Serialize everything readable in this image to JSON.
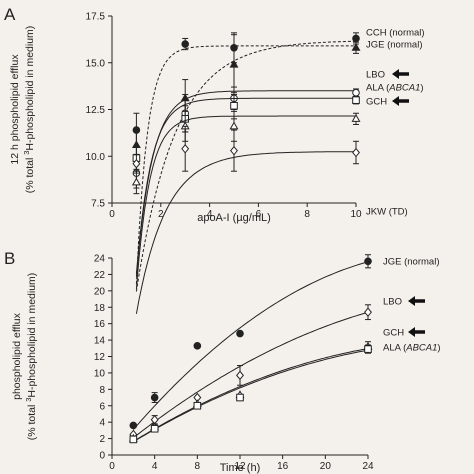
{
  "chart_data": [
    {
      "panel_label": "A",
      "type": "line",
      "xlabel": "apoA-I (µg/mL)",
      "ylabel_line1": "12 h phospholipid efflux",
      "ylabel_pre": "(% total ",
      "ylabel_sup": "3",
      "ylabel_post": "H-phospholipid in medium)",
      "xlim": [
        0,
        10
      ],
      "ylim": [
        7.5,
        17.5
      ],
      "xticks": [
        0,
        2,
        4,
        6,
        8,
        10
      ],
      "yticks": [
        7.5,
        10.0,
        12.5,
        15.0,
        17.5
      ],
      "series": [
        {
          "name": "CCH (normal)",
          "marker": "circle-filled",
          "dash": "3,2",
          "arrow": false,
          "x": [
            1,
            3,
            5,
            10
          ],
          "y": [
            11.4,
            16.0,
            15.8,
            16.3
          ],
          "err": [
            0.9,
            0.3,
            0.8,
            0.3
          ],
          "fit": [
            0,
            0.7,
            16.2,
            1.6
          ]
        },
        {
          "name": "JGE (normal)",
          "marker": "triangle-filled",
          "dash": "3,2",
          "arrow": false,
          "x": [
            1,
            3,
            5,
            10
          ],
          "y": [
            10.6,
            13.1,
            14.9,
            15.8
          ],
          "err": [
            0.8,
            1.0,
            1.6,
            0.3
          ],
          "fit": [
            0,
            0.9,
            15.9,
            0.45
          ]
        },
        {
          "name": "LBO",
          "marker": "circle-open",
          "dash": "",
          "arrow": true,
          "x": [
            1,
            3,
            5,
            10
          ],
          "y": [
            9.1,
            12.3,
            13.1,
            13.4
          ],
          "err": [
            0.8,
            1.0,
            0.6,
            0.2
          ],
          "fit": [
            0,
            0.8,
            13.5,
            0.65
          ]
        },
        {
          "name": "ALA (ABCA1)",
          "name_pre": "ALA (",
          "name_italic": "ABCA1",
          "name_post": ")",
          "marker": "square-open",
          "dash": "",
          "arrow": false,
          "x": [
            1,
            3,
            5,
            10
          ],
          "y": [
            9.9,
            12.0,
            12.7,
            13.0
          ],
          "err": [
            0.6,
            0.7,
            0.7,
            0.2
          ],
          "fit": [
            0,
            0.8,
            13.1,
            0.6
          ]
        },
        {
          "name": "GCH",
          "marker": "triangle-open",
          "dash": "",
          "arrow": true,
          "x": [
            1,
            3,
            5,
            10
          ],
          "y": [
            8.6,
            11.6,
            11.6,
            12.0
          ],
          "err": [
            0.6,
            0.8,
            0.8,
            0.3
          ],
          "fit": [
            0,
            0.85,
            12.15,
            0.55
          ]
        },
        {
          "name": "JKW (TD)",
          "marker": "diamond-open",
          "dash": "",
          "arrow": false,
          "x": [
            1,
            3,
            5,
            10
          ],
          "y": [
            9.6,
            10.4,
            10.3,
            10.2
          ],
          "err": [
            0.5,
            1.2,
            1.1,
            0.6
          ],
          "fit": [
            0,
            0.8,
            10.25,
            1.2
          ]
        }
      ]
    },
    {
      "panel_label": "B",
      "type": "line",
      "xlabel": "Time (h)",
      "ylabel_line1": "phospholipid efflux",
      "ylabel_pre": "(% total ",
      "ylabel_sup": "3",
      "ylabel_post": "H-phospholipid in medium)",
      "xlim": [
        0,
        24
      ],
      "ylim": [
        0,
        24
      ],
      "xticks": [
        0,
        4,
        8,
        12,
        16,
        20,
        24
      ],
      "yticks": [
        0,
        2,
        4,
        6,
        8,
        10,
        12,
        14,
        16,
        18,
        20,
        22,
        24
      ],
      "series": [
        {
          "name": "JGE (normal)",
          "marker": "circle-filled",
          "dash": "",
          "arrow": false,
          "x": [
            2,
            4,
            8,
            12,
            24
          ],
          "y": [
            3.6,
            7.0,
            13.3,
            14.8,
            23.6
          ],
          "err": [
            0,
            0.6,
            0,
            0,
            0.8
          ],
          "poly": [
            0,
            1.6,
            -0.0258
          ]
        },
        {
          "name": "LBO",
          "marker": "diamond-open",
          "dash": "",
          "arrow": true,
          "x": [
            2,
            4,
            8,
            12,
            24
          ],
          "y": [
            2.5,
            4.3,
            7.0,
            9.7,
            17.4
          ],
          "err": [
            0,
            0.5,
            0,
            1.2,
            0.9
          ],
          "poly": [
            0,
            1.075,
            -0.0146
          ]
        },
        {
          "name": "GCH",
          "marker": "triangle-open",
          "dash": "",
          "arrow": true,
          "x": [
            2,
            4,
            8,
            12,
            24
          ],
          "y": [
            2.0,
            3.4,
            6.2,
            7.3,
            13.2
          ],
          "err": [
            0,
            0.3,
            0,
            0,
            0.6
          ],
          "poly": [
            0,
            0.85,
            -0.0129
          ]
        },
        {
          "name": "ALA (ABCA1)",
          "name_pre": "ALA (",
          "name_italic": "ABCA1",
          "name_post": ")",
          "marker": "square-open",
          "dash": "",
          "arrow": false,
          "x": [
            2,
            4,
            8,
            12,
            24
          ],
          "y": [
            1.9,
            3.2,
            6.0,
            7.0,
            12.9
          ],
          "err": [
            0,
            0.3,
            0,
            0,
            0.5
          ],
          "poly": [
            0,
            0.83,
            -0.0124
          ]
        }
      ]
    }
  ]
}
